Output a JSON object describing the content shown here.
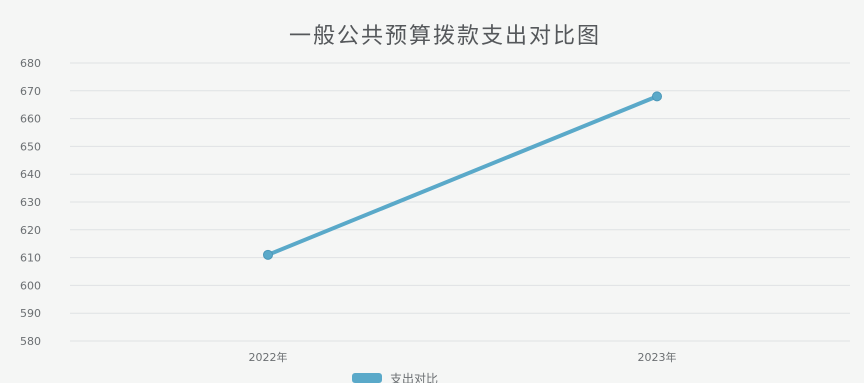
{
  "chart_data": {
    "type": "line",
    "title": "一般公共预算拨款支出对比图",
    "y_ticks": [
      580,
      590,
      600,
      610,
      620,
      630,
      640,
      650,
      660,
      670,
      680
    ],
    "ylim": [
      580,
      680
    ],
    "categories": [
      "2022年",
      "2023年"
    ],
    "series": [
      {
        "name": "支出对比",
        "values": [
          611,
          668
        ],
        "color": "#5aa9c9"
      }
    ],
    "grid": true,
    "legend_position": "bottom"
  }
}
